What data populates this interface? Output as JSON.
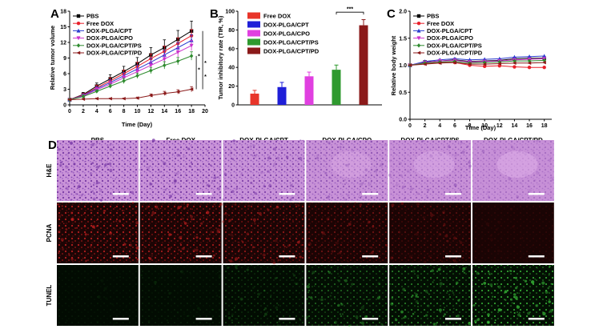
{
  "panel_labels": [
    "A",
    "B",
    "C",
    "D"
  ],
  "chart_data": [
    {
      "type": "line",
      "panel": "A",
      "xlabel": "Time (Day)",
      "ylabel": "Relative tumor volume",
      "xlim": [
        0,
        20
      ],
      "ylim": [
        0,
        18
      ],
      "xticks": [
        0,
        2,
        4,
        6,
        8,
        10,
        12,
        14,
        16,
        18,
        20
      ],
      "yticks": [
        0,
        3,
        6,
        9,
        12,
        15,
        18
      ],
      "x": [
        0,
        2,
        4,
        6,
        8,
        10,
        12,
        14,
        16,
        18
      ],
      "series": [
        {
          "name": "PBS",
          "color": "#000000",
          "marker": "square",
          "values": [
            1.0,
            2.0,
            3.6,
            5.0,
            6.4,
            7.9,
            9.6,
            11.0,
            12.6,
            14.2
          ],
          "errors": [
            0.2,
            0.4,
            0.6,
            0.8,
            1.0,
            1.2,
            1.4,
            1.5,
            1.7,
            1.9
          ]
        },
        {
          "name": "Free DOX",
          "color": "#e8202a",
          "marker": "circle",
          "values": [
            1.0,
            1.9,
            3.3,
            4.6,
            6.0,
            7.4,
            8.9,
            10.3,
            11.8,
            13.3
          ],
          "errors": [
            0.2,
            0.3,
            0.5,
            0.6,
            0.7,
            0.8,
            0.9,
            1.0,
            1.1,
            1.2
          ]
        },
        {
          "name": "DOX-PLGA/CPT",
          "color": "#2b3ccf",
          "marker": "triangle",
          "values": [
            1.0,
            1.8,
            3.1,
            4.3,
            5.6,
            6.9,
            8.2,
            9.6,
            11.0,
            12.4
          ],
          "errors": [
            0.2,
            0.3,
            0.4,
            0.5,
            0.6,
            0.7,
            0.8,
            0.9,
            1.0,
            1.1
          ]
        },
        {
          "name": "DOX-PLGA/CPO",
          "color": "#cc33cc",
          "marker": "triangle-down",
          "values": [
            1.0,
            1.7,
            2.9,
            4.0,
            5.2,
            6.4,
            7.6,
            8.8,
            10.1,
            11.4
          ],
          "errors": [
            0.2,
            0.3,
            0.4,
            0.5,
            0.5,
            0.6,
            0.7,
            0.8,
            0.9,
            1.0
          ]
        },
        {
          "name": "DOX-PLGA/CPT/PS",
          "color": "#2e8b2e",
          "marker": "diamond",
          "values": [
            1.0,
            1.6,
            2.6,
            3.6,
            4.6,
            5.6,
            6.6,
            7.6,
            8.4,
            9.4
          ],
          "errors": [
            0.2,
            0.3,
            0.3,
            0.4,
            0.5,
            0.5,
            0.6,
            0.7,
            0.7,
            0.8
          ]
        },
        {
          "name": "DOX-PLGA/CPT/PD",
          "color": "#8b1a1a",
          "marker": "diamond-left",
          "values": [
            1.0,
            1.1,
            1.2,
            1.2,
            1.2,
            1.3,
            1.8,
            2.2,
            2.5,
            3.0
          ],
          "errors": [
            0.1,
            0.1,
            0.1,
            0.1,
            0.1,
            0.2,
            0.3,
            0.4,
            0.4,
            0.5
          ]
        }
      ],
      "significance": [
        "*",
        "*",
        "*",
        "*"
      ]
    },
    {
      "type": "bar",
      "panel": "B",
      "xlabel": "",
      "ylabel": "Tumor inhibitory rate (TIR, %)",
      "ylim": [
        0,
        100
      ],
      "yticks": [
        0,
        20,
        40,
        60,
        80,
        100
      ],
      "categories": [
        "Free DOX",
        "DOX-PLGA/CPT",
        "DOX-PLGA/CPO",
        "DOX-PLGA/CPT/PS",
        "DOX-PLGA/CPT/PD"
      ],
      "values": [
        12,
        19,
        30.5,
        37.5,
        85
      ],
      "errors": [
        3.5,
        5,
        4.5,
        5,
        6
      ],
      "colors": [
        "#e8352a",
        "#1f1fd8",
        "#e040e0",
        "#2f9a2f",
        "#8b1a1a"
      ],
      "significance": "***"
    },
    {
      "type": "line",
      "panel": "C",
      "xlabel": "Time (Day)",
      "ylabel": "Relative body weight",
      "xlim": [
        0,
        19
      ],
      "ylim": [
        0.0,
        2.0
      ],
      "xticks": [
        0,
        2,
        4,
        6,
        8,
        10,
        12,
        14,
        16,
        18
      ],
      "yticks": [
        0.0,
        0.5,
        1.0,
        1.5,
        2.0
      ],
      "x": [
        0,
        2,
        4,
        6,
        8,
        10,
        12,
        14,
        16,
        18
      ],
      "series": [
        {
          "name": "PBS",
          "color": "#000000",
          "marker": "square",
          "values": [
            1.0,
            1.06,
            1.08,
            1.1,
            1.07,
            1.08,
            1.09,
            1.12,
            1.13,
            1.13
          ]
        },
        {
          "name": "Free DOX",
          "color": "#e8202a",
          "marker": "circle",
          "values": [
            1.0,
            1.03,
            1.05,
            1.05,
            1.0,
            0.98,
            0.99,
            0.97,
            0.96,
            0.96
          ]
        },
        {
          "name": "DOX-PLGA/CPT",
          "color": "#2b3ccf",
          "marker": "triangle",
          "values": [
            1.0,
            1.07,
            1.1,
            1.12,
            1.1,
            1.11,
            1.12,
            1.15,
            1.16,
            1.17
          ]
        },
        {
          "name": "DOX-PLGA/CPO",
          "color": "#cc33cc",
          "marker": "triangle-down",
          "values": [
            1.0,
            1.05,
            1.08,
            1.09,
            1.06,
            1.07,
            1.08,
            1.1,
            1.11,
            1.12
          ]
        },
        {
          "name": "DOX-PLGA/CPT/PS",
          "color": "#2e8b2e",
          "marker": "diamond",
          "values": [
            1.0,
            1.04,
            1.06,
            1.07,
            1.04,
            1.05,
            1.06,
            1.08,
            1.08,
            1.09
          ]
        },
        {
          "name": "DOX-PLGA/CPT/PD",
          "color": "#8b1a1a",
          "marker": "diamond-left",
          "values": [
            1.0,
            1.02,
            1.04,
            1.05,
            1.02,
            1.02,
            1.03,
            1.04,
            1.04,
            1.05
          ]
        }
      ]
    }
  ],
  "micrographs": {
    "columns": [
      "PBS",
      "Free DOX",
      "DOX-PLGA/CPT",
      "DOX-PLGA/CPO",
      "DOX-PLGA/CPT/PS",
      "DOX-PLGA/CPT/PD"
    ],
    "rows": [
      {
        "label": "H&E",
        "base": "#c68ed6",
        "spot": "#7a3aa8",
        "intensity": [
          0.9,
          0.9,
          0.8,
          0.6,
          0.5,
          0.35
        ]
      },
      {
        "label": "PCNA",
        "base": "#1a0404",
        "spot": "#c82020",
        "intensity": [
          0.9,
          0.8,
          0.7,
          0.5,
          0.35,
          0.12
        ]
      },
      {
        "label": "TUNEL",
        "base": "#020b02",
        "spot": "#3cc83c",
        "intensity": [
          0.08,
          0.12,
          0.3,
          0.55,
          0.7,
          0.95
        ]
      }
    ]
  }
}
